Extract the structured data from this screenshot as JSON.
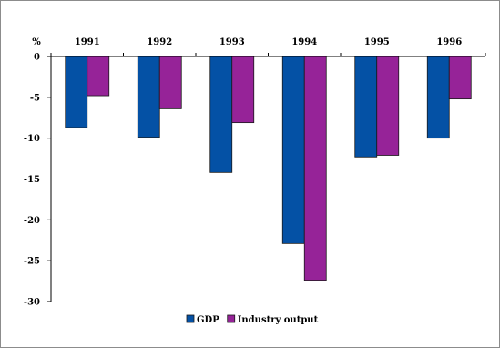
{
  "chart_data": {
    "type": "bar",
    "categories": [
      "1991",
      "1992",
      "1993",
      "1994",
      "1995",
      "1996"
    ],
    "series": [
      {
        "name": "GDP",
        "values": [
          -8.7,
          -9.9,
          -14.2,
          -22.9,
          -12.3,
          -10.0
        ],
        "color": "#0451a5"
      },
      {
        "name": "Industry output",
        "values": [
          -4.8,
          -6.4,
          -8.1,
          -27.4,
          -12.1,
          -5.2
        ],
        "color": "#962398"
      }
    ],
    "ylabel": "%",
    "ylim": [
      -30,
      0
    ],
    "yticks": [
      0,
      -5,
      -10,
      -15,
      -20,
      -25,
      -30
    ],
    "category_labels_position": "top",
    "legend_position": "bottom-center",
    "grid": false
  }
}
